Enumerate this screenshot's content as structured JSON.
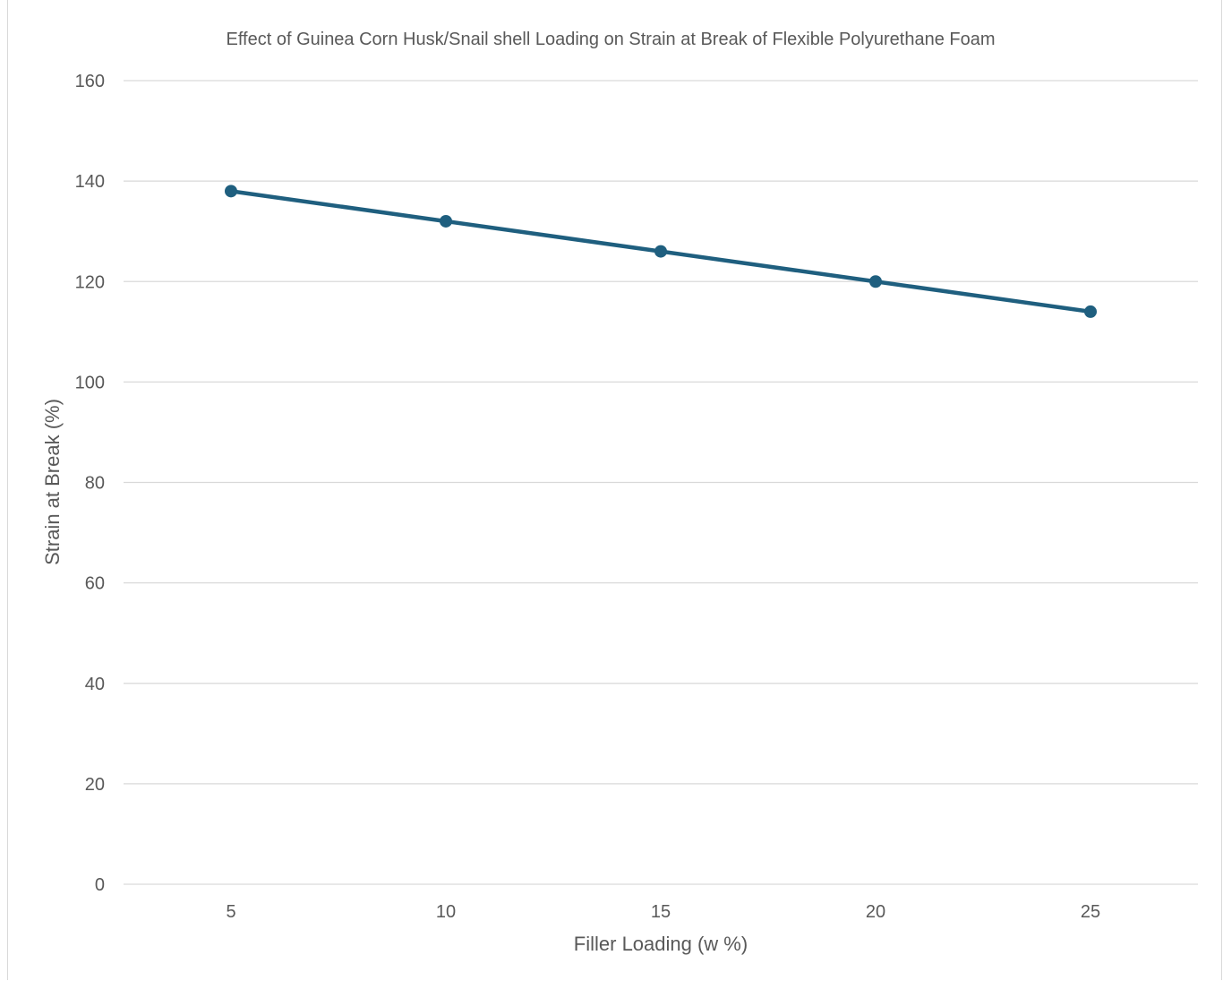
{
  "chart_data": {
    "type": "line",
    "title": "Effect of Guinea Corn Husk/Snail shell Loading on Strain at Break of Flexible Polyurethane Foam",
    "xlabel": "Filler Loading (w %)",
    "ylabel": "Strain at Break (%)",
    "categories": [
      "5",
      "10",
      "15",
      "20",
      "25"
    ],
    "series": [
      {
        "values": [
          138,
          132,
          126,
          120,
          114
        ],
        "color": "#1f5f7f"
      }
    ],
    "ylim": [
      0,
      160
    ],
    "yticks": [
      0,
      20,
      40,
      60,
      80,
      100,
      120,
      140,
      160
    ],
    "grid": true,
    "legend": "none"
  }
}
